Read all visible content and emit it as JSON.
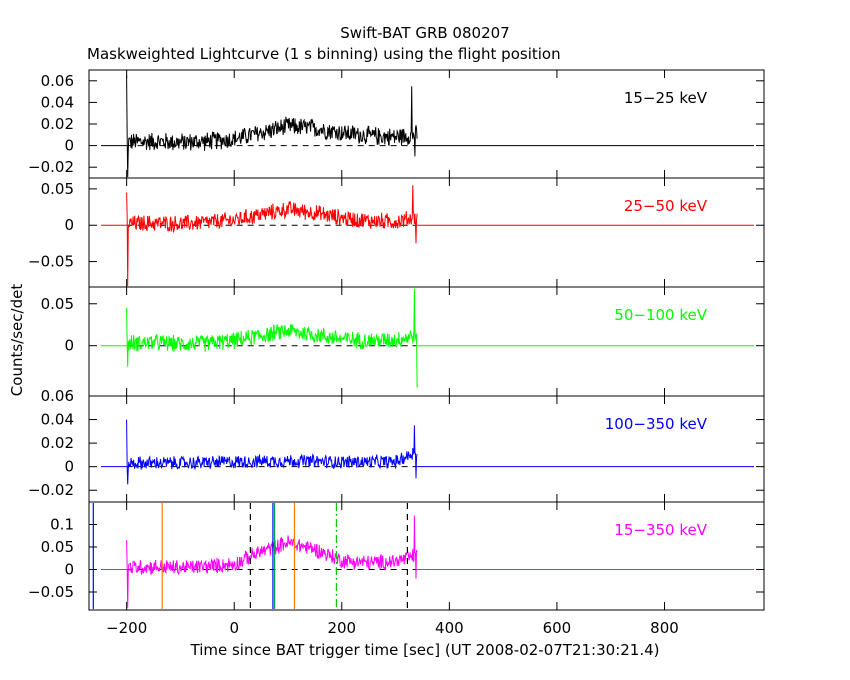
{
  "chart_data": {
    "type": "line",
    "title": "Swift-BAT GRB 080207",
    "subtitle": "Maskweighted Lightcurve (1 s binning) using the flight position",
    "xlabel": "Time since BAT trigger time [sec] (UT 2008-02-07T21:30:21.4)",
    "ylabel": "Counts/sec/det",
    "xlim": [
      -270,
      985
    ],
    "x_ticks": [
      -200,
      0,
      200,
      400,
      600,
      800
    ],
    "grid": false,
    "panels": [
      {
        "name": "15−25 keV",
        "color": "#000000",
        "ylim": [
          -0.03,
          0.07
        ],
        "y_ticks": [
          -0.02,
          0,
          0.02,
          0.04,
          0.06
        ],
        "y_tick_labels": [
          "−0.02",
          "0",
          "0.02",
          "0.04",
          "0.06"
        ],
        "trend": [
          [
            -200,
            0.003
          ],
          [
            -150,
            0.004
          ],
          [
            -100,
            0.003
          ],
          [
            -50,
            0.004
          ],
          [
            0,
            0.006
          ],
          [
            50,
            0.012
          ],
          [
            100,
            0.018
          ],
          [
            150,
            0.016
          ],
          [
            200,
            0.012
          ],
          [
            250,
            0.009
          ],
          [
            300,
            0.008
          ],
          [
            335,
            0.01
          ]
        ],
        "noise": 0.006,
        "edge_spikes": [
          [
            -200,
            0.065
          ],
          [
            -198,
            -0.03
          ],
          [
            330,
            0.055
          ],
          [
            336,
            -0.01
          ]
        ]
      },
      {
        "name": "25−50 keV",
        "color": "#ff0000",
        "ylim": [
          -0.085,
          0.065
        ],
        "y_ticks": [
          -0.05,
          0,
          0.05
        ],
        "y_tick_labels": [
          "−0.05",
          "0",
          "0.05"
        ],
        "trend": [
          [
            -200,
            0.002
          ],
          [
            -150,
            0.003
          ],
          [
            -100,
            0.002
          ],
          [
            -50,
            0.004
          ],
          [
            0,
            0.007
          ],
          [
            50,
            0.015
          ],
          [
            100,
            0.022
          ],
          [
            150,
            0.017
          ],
          [
            200,
            0.01
          ],
          [
            250,
            0.006
          ],
          [
            300,
            0.005
          ],
          [
            335,
            0.01
          ]
        ],
        "noise": 0.008,
        "edge_spikes": [
          [
            -200,
            0.045
          ],
          [
            -198,
            -0.085
          ],
          [
            332,
            0.055
          ],
          [
            338,
            -0.025
          ]
        ]
      },
      {
        "name": "50−100 keV",
        "color": "#00ff00",
        "ylim": [
          -0.06,
          0.07
        ],
        "y_ticks": [
          0,
          0.05
        ],
        "y_tick_labels": [
          "0",
          "0.05"
        ],
        "trend": [
          [
            -200,
            0.003
          ],
          [
            -150,
            0.004
          ],
          [
            -100,
            0.002
          ],
          [
            -50,
            0.003
          ],
          [
            0,
            0.006
          ],
          [
            50,
            0.012
          ],
          [
            100,
            0.018
          ],
          [
            150,
            0.013
          ],
          [
            200,
            0.008
          ],
          [
            250,
            0.006
          ],
          [
            300,
            0.007
          ],
          [
            335,
            0.012
          ]
        ],
        "noise": 0.007,
        "edge_spikes": [
          [
            -200,
            0.045
          ],
          [
            -198,
            -0.025
          ],
          [
            335,
            0.068
          ],
          [
            340,
            -0.05
          ]
        ]
      },
      {
        "name": "100−350 keV",
        "color": "#0000ff",
        "ylim": [
          -0.03,
          0.06
        ],
        "y_ticks": [
          -0.02,
          0,
          0.02,
          0.04,
          0.06
        ],
        "y_tick_labels": [
          "−0.02",
          "0",
          "0.02",
          "0.04",
          "0.06"
        ],
        "trend": [
          [
            -200,
            0.003
          ],
          [
            -100,
            0.003
          ],
          [
            0,
            0.004
          ],
          [
            100,
            0.005
          ],
          [
            200,
            0.004
          ],
          [
            300,
            0.004
          ],
          [
            335,
            0.012
          ]
        ],
        "noise": 0.004,
        "edge_spikes": [
          [
            -200,
            0.04
          ],
          [
            -198,
            -0.015
          ],
          [
            335,
            0.035
          ],
          [
            338,
            -0.01
          ]
        ]
      },
      {
        "name": "15−350 keV",
        "color": "#ff00ff",
        "ylim": [
          -0.09,
          0.15
        ],
        "y_ticks": [
          -0.05,
          0,
          0.05,
          0.1
        ],
        "y_tick_labels": [
          "−0.05",
          "0",
          "0.05",
          "0.1"
        ],
        "trend": [
          [
            -200,
            0.005
          ],
          [
            -150,
            0.006
          ],
          [
            -100,
            0.004
          ],
          [
            -50,
            0.007
          ],
          [
            0,
            0.012
          ],
          [
            50,
            0.04
          ],
          [
            100,
            0.06
          ],
          [
            150,
            0.045
          ],
          [
            200,
            0.02
          ],
          [
            250,
            0.015
          ],
          [
            300,
            0.018
          ],
          [
            335,
            0.03
          ]
        ],
        "noise": 0.012,
        "edge_spikes": [
          [
            -200,
            0.065
          ],
          [
            -198,
            -0.085
          ],
          [
            335,
            0.12
          ],
          [
            338,
            -0.02
          ]
        ],
        "markers": [
          {
            "x": -262,
            "color": "#0000ff",
            "dash": "solid"
          },
          {
            "x": -134,
            "color": "#ff8000",
            "dash": "solid"
          },
          {
            "x": 30,
            "color": "#000000",
            "dash": "dashed"
          },
          {
            "x": 72,
            "color": "#0000ff",
            "dash": "solid"
          },
          {
            "x": 75,
            "color": "#00aa55",
            "dash": "solid"
          },
          {
            "x": 112,
            "color": "#ff8000",
            "dash": "solid"
          },
          {
            "x": 190,
            "color": "#00cc00",
            "dash": "dashdot"
          },
          {
            "x": 322,
            "color": "#000000",
            "dash": "dashed"
          }
        ]
      }
    ]
  }
}
